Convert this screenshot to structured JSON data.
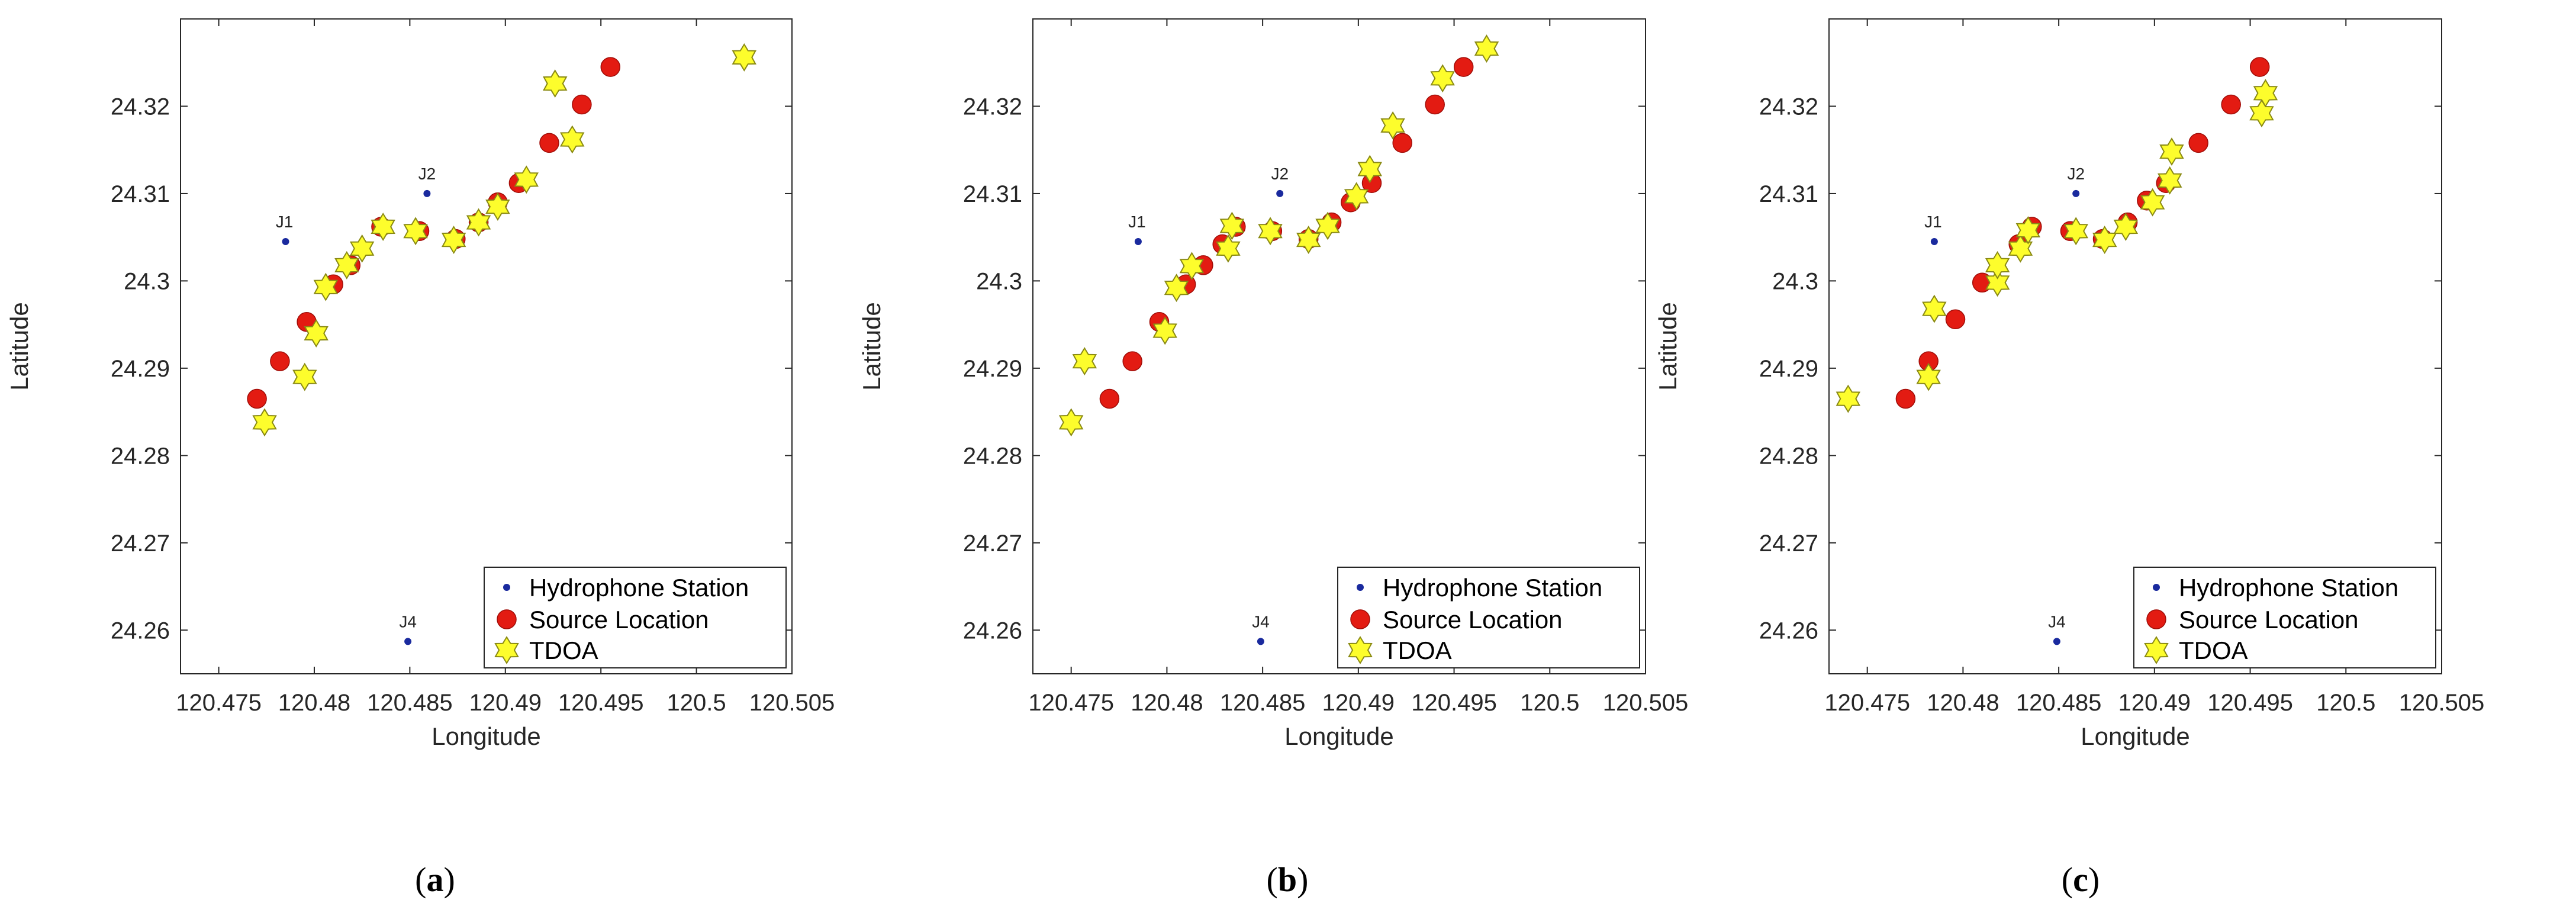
{
  "colors": {
    "station": "#1a2a9e",
    "source": "#e31b12",
    "source_edge": "#a00d08",
    "tdoa": "#fdfd2c",
    "tdoa_edge": "#8a8a14",
    "axis": "#262626"
  },
  "chart_data": [
    {
      "type": "scatter",
      "caption": [
        "(",
        "a",
        ")"
      ],
      "xlabel": "Longitude",
      "ylabel": "Latitude",
      "xlim": [
        120.473,
        120.505
      ],
      "ylim": [
        24.255,
        24.33
      ],
      "xticks": [
        "120.475",
        "120.48",
        "120.485",
        "120.49",
        "120.495",
        "120.5",
        "120.505"
      ],
      "yticks": [
        "24.26",
        "24.27",
        "24.28",
        "24.29",
        "24.3",
        "24.31",
        "24.32"
      ],
      "legend_position": "bottom-right",
      "legend": [
        "Hydrophone Station",
        "Source Location",
        "TDOA"
      ],
      "stations": [
        {
          "label": "J1",
          "x": 120.4785,
          "y": 24.3045
        },
        {
          "label": "J2",
          "x": 120.4859,
          "y": 24.31
        },
        {
          "label": "J4",
          "x": 120.4849,
          "y": 24.2587
        }
      ],
      "source": [
        [
          120.477,
          24.2865
        ],
        [
          120.4782,
          24.2908
        ],
        [
          120.4796,
          24.2953
        ],
        [
          120.481,
          24.2996
        ],
        [
          120.4819,
          24.3018
        ],
        [
          120.4835,
          24.3062
        ],
        [
          120.4855,
          24.3057
        ],
        [
          120.4874,
          24.3048
        ],
        [
          120.4886,
          24.3067
        ],
        [
          120.4896,
          24.309
        ],
        [
          120.4907,
          24.3112
        ],
        [
          120.4923,
          24.3158
        ],
        [
          120.494,
          24.3202
        ],
        [
          120.4955,
          24.3245
        ]
      ],
      "tdoa": [
        [
          120.4774,
          24.2838
        ],
        [
          120.4795,
          24.289
        ],
        [
          120.4801,
          24.294
        ],
        [
          120.4806,
          24.2993
        ],
        [
          120.4817,
          24.3018
        ],
        [
          120.4825,
          24.3037
        ],
        [
          120.4836,
          24.3062
        ],
        [
          120.4853,
          24.3057
        ],
        [
          120.4873,
          24.3047
        ],
        [
          120.4886,
          24.3067
        ],
        [
          120.4896,
          24.3085
        ],
        [
          120.4911,
          24.3116
        ],
        [
          120.4926,
          24.3226
        ],
        [
          120.4935,
          24.3162
        ],
        [
          120.5025,
          24.3256
        ]
      ]
    },
    {
      "type": "scatter",
      "caption": [
        "(",
        "b",
        ")"
      ],
      "xlabel": "Longitude",
      "ylabel": "Latitude",
      "xlim": [
        120.473,
        120.505
      ],
      "ylim": [
        24.255,
        24.33
      ],
      "xticks": [
        "120.475",
        "120.48",
        "120.485",
        "120.49",
        "120.495",
        "120.5",
        "120.505"
      ],
      "yticks": [
        "24.26",
        "24.27",
        "24.28",
        "24.29",
        "24.3",
        "24.31",
        "24.32"
      ],
      "legend_position": "bottom-right",
      "legend": [
        "Hydrophone Station",
        "Source Location",
        "TDOA"
      ],
      "stations": [
        {
          "label": "J1",
          "x": 120.4785,
          "y": 24.3045
        },
        {
          "label": "J2",
          "x": 120.4859,
          "y": 24.31
        },
        {
          "label": "J4",
          "x": 120.4849,
          "y": 24.2587
        }
      ],
      "source": [
        [
          120.477,
          24.2865
        ],
        [
          120.4782,
          24.2908
        ],
        [
          120.4796,
          24.2953
        ],
        [
          120.481,
          24.2996
        ],
        [
          120.4819,
          24.3018
        ],
        [
          120.4829,
          24.3042
        ],
        [
          120.4836,
          24.3062
        ],
        [
          120.4855,
          24.3057
        ],
        [
          120.4874,
          24.3048
        ],
        [
          120.4886,
          24.3067
        ],
        [
          120.4896,
          24.309
        ],
        [
          120.4907,
          24.3112
        ],
        [
          120.4923,
          24.3158
        ],
        [
          120.494,
          24.3202
        ],
        [
          120.4955,
          24.3245
        ]
      ],
      "tdoa": [
        [
          120.475,
          24.2838
        ],
        [
          120.4757,
          24.2908
        ],
        [
          120.4799,
          24.2943
        ],
        [
          120.4805,
          24.2992
        ],
        [
          120.4813,
          24.3017
        ],
        [
          120.4832,
          24.3037
        ],
        [
          120.4834,
          24.3063
        ],
        [
          120.4854,
          24.3057
        ],
        [
          120.4874,
          24.3047
        ],
        [
          120.4884,
          24.3063
        ],
        [
          120.4899,
          24.3097
        ],
        [
          120.4906,
          24.3128
        ],
        [
          120.4918,
          24.3178
        ],
        [
          120.4944,
          24.3232
        ],
        [
          120.4967,
          24.3266
        ]
      ]
    },
    {
      "type": "scatter",
      "caption": [
        "(",
        "c",
        ")"
      ],
      "xlabel": "Longitude",
      "ylabel": "Latitude",
      "xlim": [
        120.473,
        120.505
      ],
      "ylim": [
        24.255,
        24.33
      ],
      "xticks": [
        "120.475",
        "120.48",
        "120.485",
        "120.49",
        "120.495",
        "120.5",
        "120.505"
      ],
      "yticks": [
        "24.26",
        "24.27",
        "24.28",
        "24.29",
        "24.3",
        "24.31",
        "24.32"
      ],
      "legend_position": "bottom-right",
      "legend": [
        "Hydrophone Station",
        "Source Location",
        "TDOA"
      ],
      "stations": [
        {
          "label": "J1",
          "x": 120.4785,
          "y": 24.3045
        },
        {
          "label": "J2",
          "x": 120.4859,
          "y": 24.31
        },
        {
          "label": "J4",
          "x": 120.4849,
          "y": 24.2587
        }
      ],
      "source": [
        [
          120.477,
          24.2865
        ],
        [
          120.4782,
          24.2908
        ],
        [
          120.4796,
          24.2956
        ],
        [
          120.481,
          24.2998
        ],
        [
          120.4829,
          24.3042
        ],
        [
          120.4836,
          24.3062
        ],
        [
          120.4856,
          24.3057
        ],
        [
          120.4873,
          24.3048
        ],
        [
          120.4886,
          24.3067
        ],
        [
          120.4896,
          24.3092
        ],
        [
          120.4906,
          24.3112
        ],
        [
          120.4923,
          24.3158
        ],
        [
          120.494,
          24.3202
        ],
        [
          120.4955,
          24.3245
        ]
      ],
      "tdoa": [
        [
          120.474,
          24.2865
        ],
        [
          120.4782,
          24.289
        ],
        [
          120.4785,
          24.2968
        ],
        [
          120.4818,
          24.2998
        ],
        [
          120.4818,
          24.3018
        ],
        [
          120.483,
          24.3037
        ],
        [
          120.4834,
          24.3058
        ],
        [
          120.4859,
          24.3057
        ],
        [
          120.4874,
          24.3047
        ],
        [
          120.4885,
          24.3062
        ],
        [
          120.4899,
          24.309
        ],
        [
          120.4908,
          24.3115
        ],
        [
          120.4909,
          24.3148
        ],
        [
          120.4956,
          24.3192
        ],
        [
          120.4958,
          24.3215
        ]
      ]
    }
  ]
}
